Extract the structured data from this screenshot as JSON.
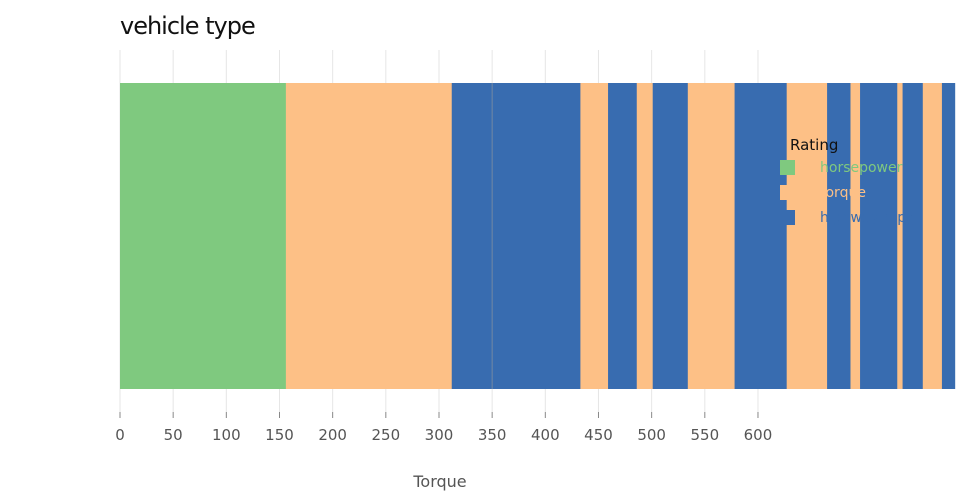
{
  "chart_data": {
    "type": "bar",
    "orientation": "horizontal",
    "stacked": true,
    "title": "vehicle type",
    "xlabel": "Torque",
    "ylabel": "",
    "xlim": [
      0,
      790
    ],
    "xticks": [
      0,
      50,
      100,
      150,
      200,
      250,
      300,
      350,
      400,
      450,
      500,
      550,
      600
    ],
    "grid": true,
    "legend": {
      "title": "Rating",
      "placement": "right",
      "entries": [
        {
          "name": "horsepower",
          "color": "#7fc97f"
        },
        {
          "name": "torque",
          "color": "#fdc086"
        },
        {
          "name": "highway-mpg",
          "color": "#386cb0"
        }
      ]
    },
    "segments": [
      {
        "series": "horsepower",
        "value": 156
      },
      {
        "series": "torque",
        "value": 156
      },
      {
        "series": "highway-mpg",
        "value": 121
      },
      {
        "series": "torque",
        "value": 26
      },
      {
        "series": "highway-mpg",
        "value": 27
      },
      {
        "series": "torque",
        "value": 15
      },
      {
        "series": "highway-mpg",
        "value": 33
      },
      {
        "series": "torque",
        "value": 44
      },
      {
        "series": "highway-mpg",
        "value": 49
      },
      {
        "series": "torque",
        "value": 38
      },
      {
        "series": "highway-mpg",
        "value": 22
      },
      {
        "series": "torque",
        "value": 9
      },
      {
        "series": "highway-mpg",
        "value": 35
      },
      {
        "series": "torque",
        "value": 5
      },
      {
        "series": "highway-mpg",
        "value": 19
      },
      {
        "series": "torque",
        "value": 18
      },
      {
        "series": "highway-mpg",
        "value": 12
      }
    ]
  }
}
